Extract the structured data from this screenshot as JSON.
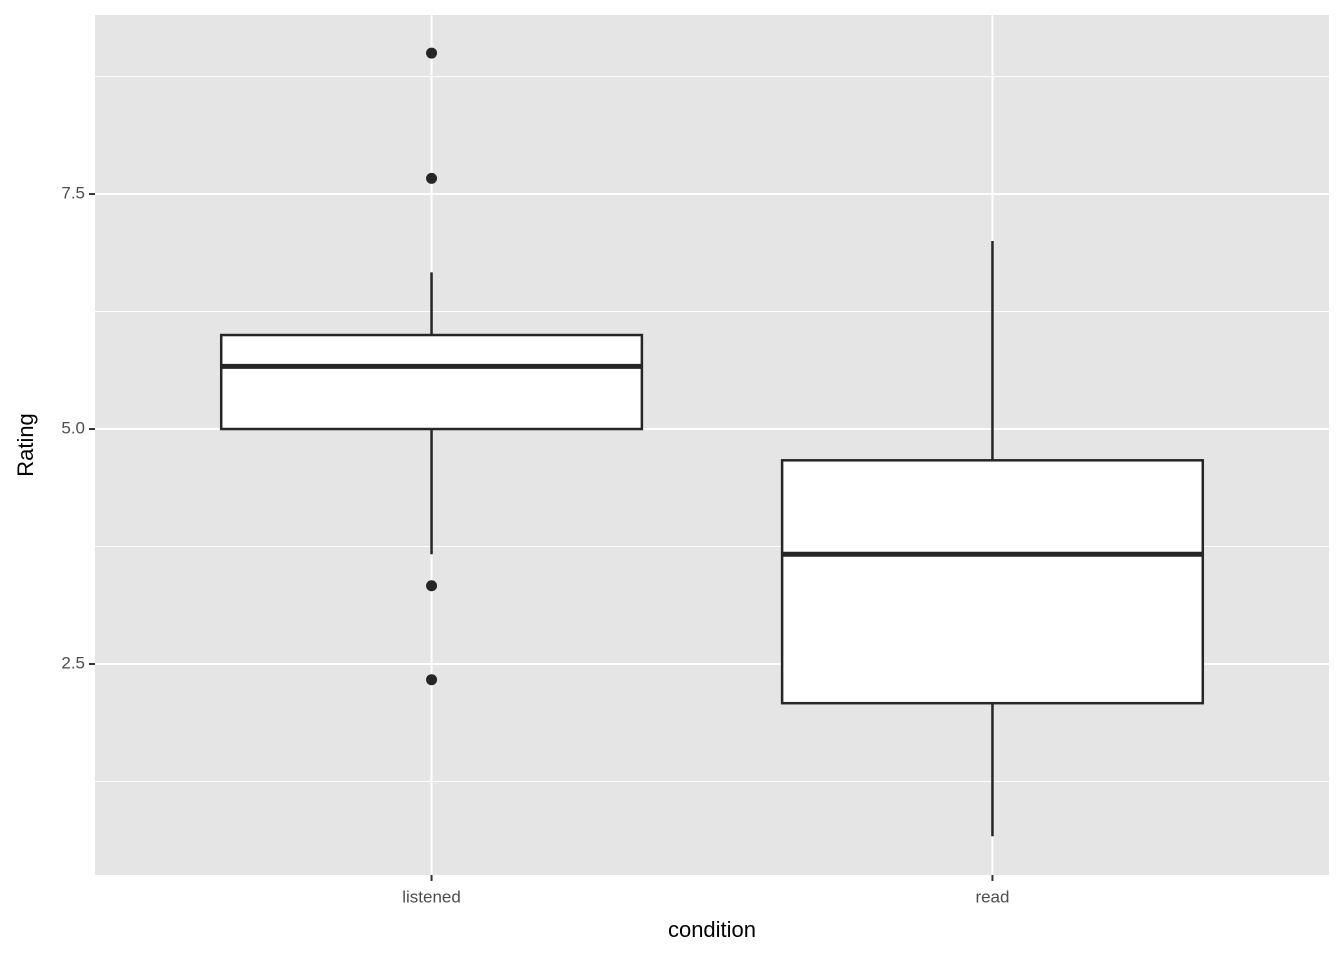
{
  "chart_data": {
    "type": "boxplot",
    "x_label": "condition",
    "y_label": "Rating",
    "categories": [
      "listened",
      "read"
    ],
    "boxes": [
      {
        "min": 3.667,
        "q1": 5,
        "median": 5.667,
        "q3": 6,
        "max": 6.667,
        "outliers": [
          9,
          7.667,
          3.333,
          2.333
        ]
      },
      {
        "min": 0.667,
        "q1": 2.083,
        "median": 3.667,
        "q3": 4.667,
        "max": 7,
        "outliers": []
      }
    ],
    "box_fill": "#ffffff",
    "box_stroke": "#262626",
    "ylim": [
      0.255,
      9.405
    ],
    "yticks": [
      2.5,
      {
        "value": 5,
        "label": "5.0"
      },
      7.5
    ],
    "y_minor_ticks": [
      1.25,
      3.75,
      6.25,
      8.75
    ],
    "grid": true
  }
}
